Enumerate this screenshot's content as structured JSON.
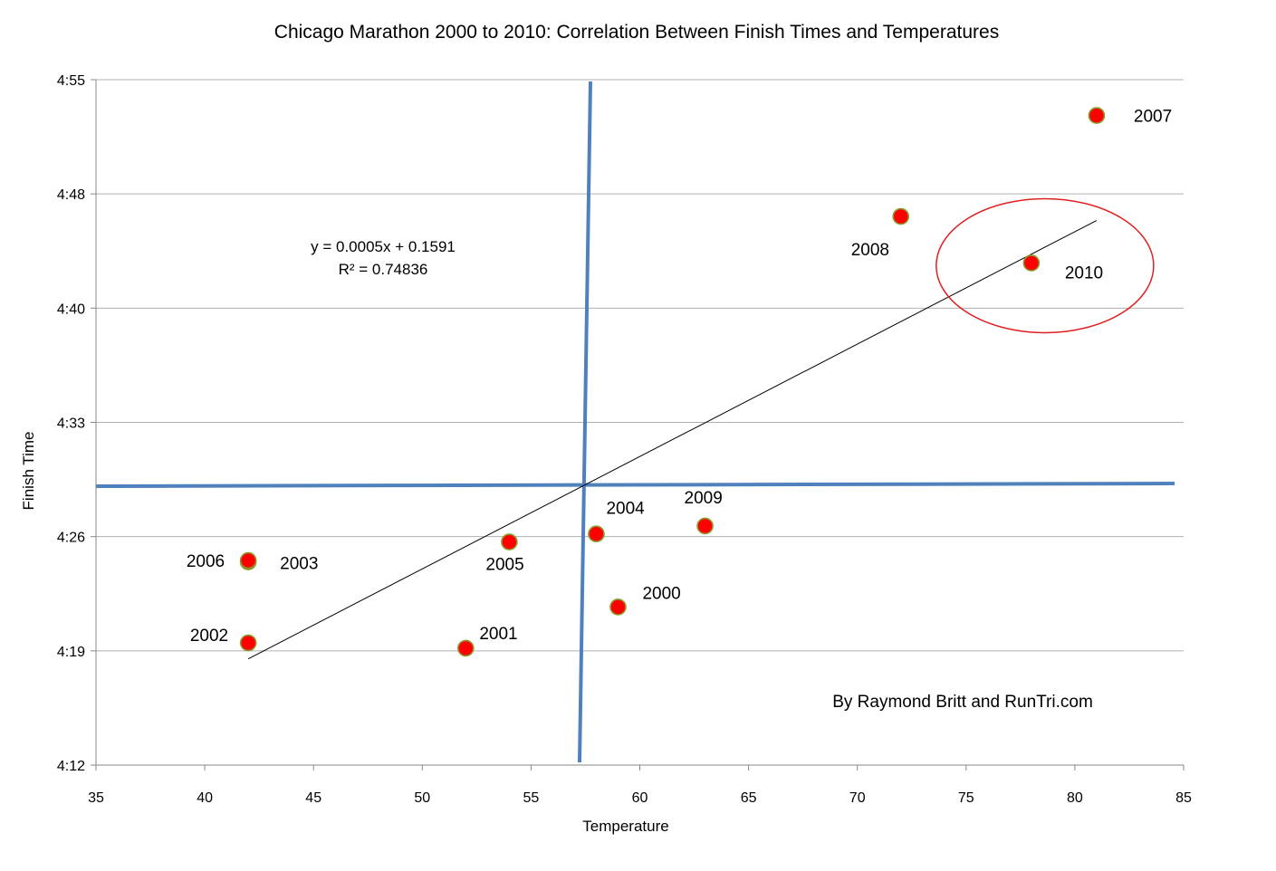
{
  "chart_data": {
    "type": "scatter",
    "title": "Chicago Marathon 2000 to 2010: Correlation Between Finish Times and Temperatures",
    "xlabel": "Temperature",
    "ylabel": "Finish Time",
    "xlim": [
      35,
      85
    ],
    "ylim": [
      "4:12",
      "4:55"
    ],
    "x_ticks": [
      "35",
      "40",
      "45",
      "50",
      "55",
      "60",
      "65",
      "70",
      "75",
      "80",
      "85"
    ],
    "y_ticks": [
      "4:12",
      "4:19",
      "4:26",
      "4:33",
      "4:40",
      "4:48",
      "4:55"
    ],
    "grid": "horizontal",
    "points": [
      {
        "label": "2000",
        "x": 59,
        "y": "4:21:55"
      },
      {
        "label": "2001",
        "x": 52,
        "y": "4:19:20"
      },
      {
        "label": "2002",
        "x": 42,
        "y": "4:19:40"
      },
      {
        "label": "2003",
        "x": 42,
        "y": "4:24:45"
      },
      {
        "label": "2004",
        "x": 58,
        "y": "4:26:30"
      },
      {
        "label": "2005",
        "x": 54,
        "y": "4:26:00"
      },
      {
        "label": "2006",
        "x": 42,
        "y": "4:24:50"
      },
      {
        "label": "2007",
        "x": 81,
        "y": "4:52:45"
      },
      {
        "label": "2008",
        "x": 72,
        "y": "4:46:25"
      },
      {
        "label": "2009",
        "x": 63,
        "y": "4:27:00"
      },
      {
        "label": "2010",
        "x": 78,
        "y": "4:43:30"
      }
    ],
    "trendline": {
      "x_start": 42,
      "y_start": "4:18:40",
      "x_end": 81,
      "y_end": "4:46:10",
      "equation": "y = 0.0005x + 0.1591",
      "r_squared": "R² = 0.74836"
    },
    "annotations": {
      "credit": "By Raymond Britt and RunTri.com"
    },
    "colors": {
      "marker": "#ff0000",
      "marker_outline": "#8a9a2a",
      "quadrant_lines": "#4f81bd",
      "highlight_circle": "#e02020",
      "grid": "#b0b0b0",
      "trendline": "#000000"
    }
  }
}
